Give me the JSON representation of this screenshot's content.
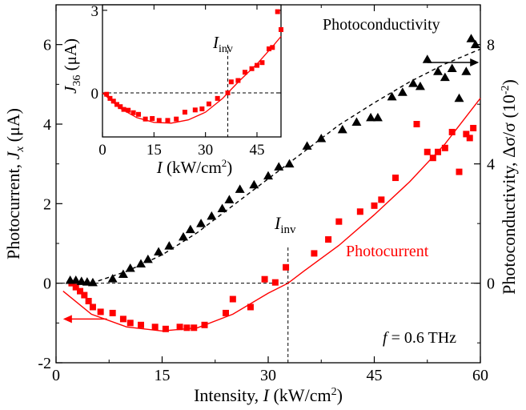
{
  "chart_data": [
    {
      "type": "scatter",
      "role": "main",
      "xlabel": {
        "prefix": "Intensity, ",
        "var": "I",
        "unit_a": " (kW/cm",
        "unit_sup": "2",
        "unit_b": ")"
      },
      "ylabel_left": {
        "prefix": "Photocurrent, ",
        "var": "J",
        "sub": "x",
        "unit": " (μA)"
      },
      "ylabel_right": {
        "prefix": "Photoconductivity, Δσ/σ (10",
        "sup": "-2",
        "suffix": ")"
      },
      "xlim": [
        0,
        60
      ],
      "ylim_left": [
        -2,
        7
      ],
      "ylim_right": [
        -2.6667,
        9.3333
      ],
      "x_ticks": [
        0,
        15,
        30,
        45,
        60
      ],
      "x_tick_labels": [
        "0",
        "15",
        "30",
        "45",
        "60"
      ],
      "y_left_ticks": [
        -2,
        0,
        2,
        4,
        6
      ],
      "y_left_tick_labels": [
        "-2",
        "0",
        "2",
        "4",
        "6"
      ],
      "y_right_ticks": [
        0,
        4,
        8
      ],
      "y_right_tick_labels": [
        "0",
        "4",
        "8"
      ],
      "series": [
        {
          "name": "Photocurrent",
          "axis": "left",
          "color": "#ff0000",
          "marker": "square",
          "x": [
            2.2,
            2.8,
            3.4,
            4.0,
            4.6,
            5.2,
            6.3,
            8.0,
            9.5,
            10.5,
            12.0,
            14.0,
            15.5,
            17.5,
            18.5,
            19.5,
            21.0,
            24.0,
            25.0,
            27.5,
            29.5,
            31.0,
            32.5,
            36.5,
            38.5,
            40.0,
            43.0,
            45.0,
            46.0,
            48.0,
            51.0,
            52.5,
            53.3,
            54.0,
            55.0,
            56.0,
            57.0,
            58.0,
            58.5,
            59.0
          ],
          "y": [
            0.0,
            -0.1,
            -0.2,
            -0.3,
            -0.45,
            -0.6,
            -0.72,
            -0.75,
            -0.9,
            -1.0,
            -1.05,
            -1.1,
            -1.15,
            -1.1,
            -1.12,
            -1.12,
            -1.05,
            -0.75,
            -0.4,
            -0.6,
            0.1,
            0.02,
            0.4,
            0.75,
            1.1,
            1.55,
            1.8,
            1.95,
            2.1,
            2.65,
            4.0,
            3.3,
            3.15,
            3.3,
            3.4,
            3.8,
            2.8,
            3.75,
            3.65,
            3.9
          ]
        },
        {
          "name": "Photoconductivity",
          "axis": "right",
          "color": "#000000",
          "marker": "triangle",
          "x": [
            2.0,
            2.8,
            3.6,
            4.4,
            5.2,
            8.0,
            9.5,
            10.5,
            12.0,
            13.0,
            14.5,
            16.0,
            18.0,
            19.0,
            20.5,
            22.0,
            23.5,
            24.5,
            26.0,
            28.0,
            30.0,
            31.5,
            33.0,
            35.5,
            37.5,
            40.5,
            42.5,
            44.5,
            45.5,
            47.5,
            49.0,
            50.5,
            51.5,
            52.5,
            54.0,
            55.0,
            56.0,
            57.0,
            58.0,
            58.7,
            59.3
          ],
          "y": [
            0.1,
            0.1,
            0.06,
            0.04,
            0.02,
            0.15,
            0.3,
            0.5,
            0.65,
            0.8,
            1.05,
            1.25,
            1.55,
            1.8,
            2.0,
            2.25,
            2.5,
            2.8,
            3.15,
            3.3,
            3.6,
            3.9,
            4.0,
            4.6,
            4.85,
            5.15,
            5.4,
            5.55,
            5.55,
            6.25,
            6.4,
            6.7,
            6.6,
            7.5,
            7.1,
            6.9,
            7.2,
            6.2,
            7.1,
            8.2,
            8.0
          ]
        }
      ],
      "fits": [
        {
          "name": "photocurrent-fit",
          "axis": "left",
          "color": "#ff0000",
          "style": "solid",
          "x": [
            1,
            5,
            10,
            15,
            20,
            25,
            30,
            32.8,
            35,
            40,
            45,
            50,
            55,
            60
          ],
          "y": [
            -0.2,
            -0.78,
            -1.1,
            -1.2,
            -1.12,
            -0.78,
            -0.25,
            0.0,
            0.3,
            0.95,
            1.72,
            2.55,
            3.5,
            4.65
          ]
        },
        {
          "name": "photoconductivity-fit",
          "axis": "right",
          "color": "#000000",
          "style": "dashed",
          "x": [
            5,
            10,
            15,
            20,
            25,
            30,
            35,
            40,
            45,
            50,
            55,
            60
          ],
          "y": [
            0.0,
            0.4,
            0.95,
            1.7,
            2.6,
            3.5,
            4.4,
            5.3,
            6.05,
            6.75,
            7.35,
            7.85
          ]
        }
      ],
      "zero_line": {
        "axis": "left",
        "y": 0
      },
      "inv_line": {
        "x": 32.8
      },
      "annotations": {
        "photoconductivity_label": "Photoconductivity",
        "photocurrent_label": "Photocurrent",
        "inv_label_var": "I",
        "inv_label_sub": "inv",
        "freq_label_var": "f",
        "freq_label_rest": " = 0.6 THz"
      }
    },
    {
      "type": "scatter",
      "role": "inset",
      "xlabel": {
        "var": "I",
        "unit_a": " (kW/cm",
        "unit_sup": "2",
        "unit_b": ")"
      },
      "ylabel": {
        "var": "J",
        "sub": "36",
        "unit": " (μA)"
      },
      "xlim": [
        0,
        52
      ],
      "ylim": [
        -1.6,
        3.2
      ],
      "x_ticks": [
        0,
        15,
        30,
        45
      ],
      "x_tick_labels": [
        "0",
        "15",
        "30",
        "45"
      ],
      "y_ticks": [
        0,
        3
      ],
      "y_tick_labels": [
        "0",
        "3"
      ],
      "series": [
        {
          "name": "J36",
          "color": "#ff0000",
          "marker": "square",
          "x": [
            1.2,
            2.2,
            3.2,
            4.2,
            5.2,
            6.2,
            7.5,
            9.0,
            10.5,
            12.5,
            14.5,
            16.5,
            19.0,
            21.5,
            24.0,
            27.0,
            29.0,
            31.0,
            33.5,
            36.5,
            37.5,
            39.5,
            41.5,
            43.5,
            45.0,
            46.5,
            48.5,
            49.5,
            51.0,
            52.0
          ],
          "y": [
            -0.05,
            -0.2,
            -0.3,
            -0.42,
            -0.5,
            -0.6,
            -0.63,
            -0.72,
            -0.78,
            -0.95,
            -0.93,
            -1.0,
            -1.0,
            -0.95,
            -0.7,
            -0.62,
            -0.58,
            -0.4,
            -0.2,
            0.0,
            0.4,
            0.45,
            0.75,
            0.88,
            1.0,
            1.1,
            1.6,
            1.65,
            2.95,
            2.3
          ]
        }
      ],
      "fits": [
        {
          "name": "inset-fit",
          "color": "#ff0000",
          "style": "solid",
          "x": [
            0,
            5,
            10,
            15,
            20,
            25,
            30,
            35,
            36.5,
            40,
            45,
            50,
            52
          ],
          "y": [
            0.0,
            -0.55,
            -0.9,
            -1.07,
            -1.1,
            -0.98,
            -0.7,
            -0.2,
            0.0,
            0.45,
            1.05,
            1.75,
            2.05
          ]
        }
      ],
      "zero_line": {
        "y": 0
      },
      "inv_line": {
        "x": 36.5
      },
      "annotations": {
        "inv_label_var": "I",
        "inv_label_sub": "inv"
      }
    }
  ]
}
